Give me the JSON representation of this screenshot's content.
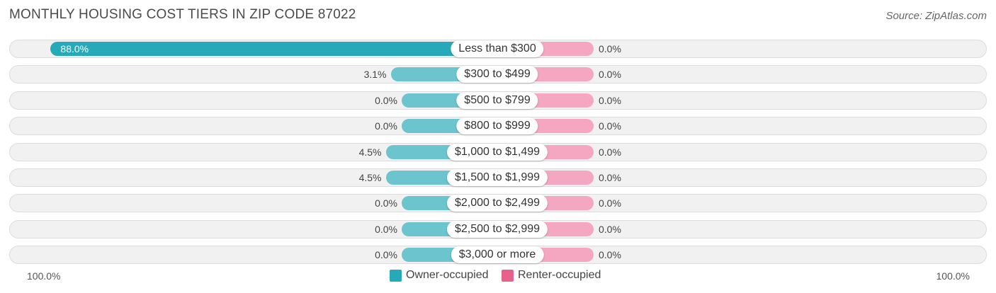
{
  "header": {
    "title": "MONTHLY HOUSING COST TIERS IN ZIP CODE 87022",
    "source": "Source: ZipAtlas.com"
  },
  "colors": {
    "owner": "#6cc4cf",
    "owner_strong": "#26a9b8",
    "renter": "#f5a6c0",
    "renter_legend": "#e8618c"
  },
  "chart_data": {
    "type": "bar",
    "orientation": "horizontal-diverging",
    "categories": [
      "Less than $300",
      "$300 to $499",
      "$500 to $799",
      "$800 to $999",
      "$1,000 to $1,499",
      "$1,500 to $1,999",
      "$2,000 to $2,499",
      "$2,500 to $2,999",
      "$3,000 or more"
    ],
    "series": [
      {
        "name": "Owner-occupied",
        "values": [
          88.0,
          3.1,
          0.0,
          0.0,
          4.5,
          4.5,
          0.0,
          0.0,
          0.0
        ]
      },
      {
        "name": "Renter-occupied",
        "values": [
          0.0,
          0.0,
          0.0,
          0.0,
          0.0,
          0.0,
          0.0,
          0.0,
          0.0
        ]
      }
    ],
    "value_labels": {
      "owner": [
        "88.0%",
        "3.1%",
        "0.0%",
        "0.0%",
        "4.5%",
        "4.5%",
        "0.0%",
        "0.0%",
        "0.0%"
      ],
      "renter": [
        "0.0%",
        "0.0%",
        "0.0%",
        "0.0%",
        "0.0%",
        "0.0%",
        "0.0%",
        "0.0%",
        "0.0%"
      ]
    },
    "xlim": [
      0,
      100
    ],
    "axis_left_label": "100.0%",
    "axis_right_label": "100.0%",
    "legend_position": "bottom-center"
  }
}
